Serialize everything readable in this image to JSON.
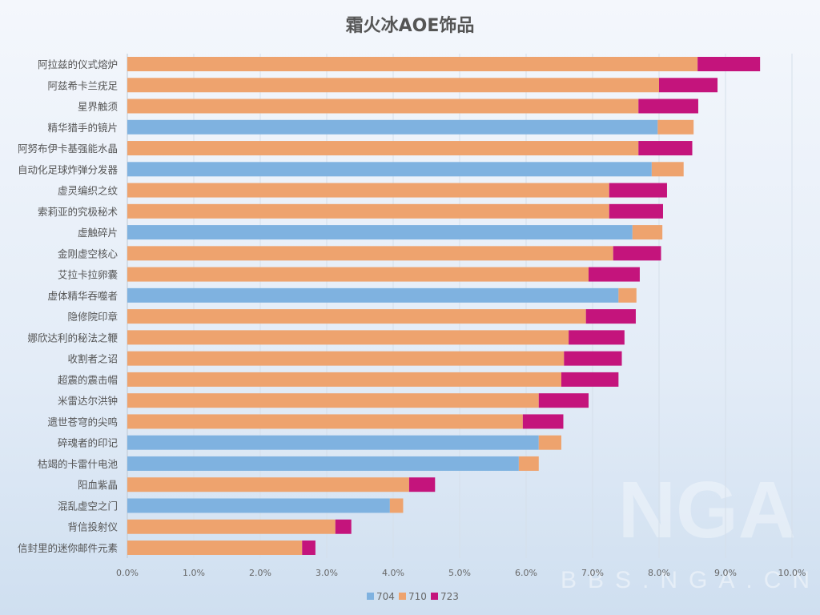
{
  "chart_data": {
    "type": "bar",
    "orientation": "horizontal",
    "stacked": true,
    "title": "霜火冰AOE饰品",
    "categories": [
      "阿拉兹的仪式熔炉",
      "阿兹希卡兰疣足",
      "星界触须",
      "精华猎手的镜片",
      "阿努布伊卡基强能水晶",
      "自动化足球炸弹分发器",
      "虚灵编织之纹",
      "索莉亚的究极秘术",
      "虚触碎片",
      "金刚虚空核心",
      "艾拉卡拉卵囊",
      "虚体精华吞噬者",
      "隐修院印章",
      "娜欣达利的秘法之鞭",
      "收割者之诏",
      "超震的震击帽",
      "米雷达尔洪钟",
      "遗世苍穹的尖鸣",
      "碎魂者的印记",
      "枯竭的卡雷什电池",
      "阳血紫晶",
      "混乱虚空之门",
      "背信投射仪",
      "信封里的迷你邮件元素"
    ],
    "series": [
      {
        "name": "704",
        "color": "#7fb2e0",
        "values": [
          0,
          0,
          0,
          7.98,
          0,
          7.89,
          0,
          0,
          7.6,
          0,
          0,
          7.39,
          0,
          0,
          0,
          0,
          0,
          0,
          6.19,
          5.89,
          0,
          3.95,
          0,
          0
        ]
      },
      {
        "name": "710",
        "color": "#eea36e",
        "values": [
          8.58,
          8.0,
          7.69,
          0.54,
          7.69,
          0.48,
          7.25,
          7.25,
          0.45,
          7.31,
          6.94,
          0.27,
          6.9,
          6.64,
          6.57,
          6.53,
          6.19,
          5.95,
          0.34,
          0.3,
          4.24,
          0.2,
          3.13,
          2.63
        ]
      },
      {
        "name": "723",
        "color": "#c4147c",
        "values": [
          0.94,
          0.88,
          0.9,
          0,
          0.81,
          0,
          0.87,
          0.81,
          0,
          0.72,
          0.77,
          0,
          0.75,
          0.84,
          0.87,
          0.86,
          0.75,
          0.61,
          0,
          0,
          0.39,
          0,
          0.24,
          0.2
        ]
      }
    ],
    "xlim": [
      0,
      10
    ],
    "xticks": [
      "0.0%",
      "1.0%",
      "2.0%",
      "3.0%",
      "4.0%",
      "5.0%",
      "6.0%",
      "7.0%",
      "8.0%",
      "9.0%",
      "10.0%"
    ],
    "unit": "%",
    "grid": true,
    "legend": "bottom"
  },
  "watermark": "NGA BBS.NGA.CN"
}
